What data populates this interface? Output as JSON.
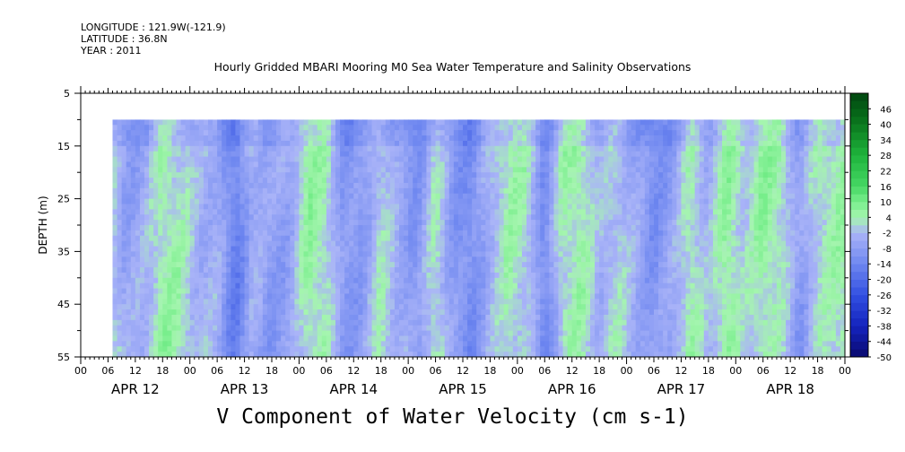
{
  "header": {
    "longitude": "LONGITUDE : 121.9W(-121.9)",
    "latitude": "LATITUDE : 36.8N",
    "year": "YEAR : 2011"
  },
  "chart_data": {
    "type": "heatmap",
    "title": "Hourly Gridded MBARI Mooring M0 Sea Water Temperature and Salinity Observations",
    "xlabel": "V Component of Water Velocity (cm s-1)",
    "ylabel": "DEPTH (m)",
    "y_ticks": [
      5,
      15,
      25,
      35,
      45,
      55
    ],
    "ylim": [
      5,
      55
    ],
    "y_inverted": true,
    "x_hour_labels": [
      "00",
      "06",
      "12",
      "18",
      "00",
      "06",
      "12",
      "18",
      "00",
      "06",
      "12",
      "18",
      "00",
      "06",
      "12",
      "18",
      "00",
      "06",
      "12",
      "18",
      "00",
      "06",
      "12",
      "18",
      "00",
      "06",
      "12",
      "18",
      "00"
    ],
    "x_day_labels": [
      "APR 12",
      "APR 13",
      "APR 14",
      "APR 15",
      "APR 16",
      "APR 17",
      "APR 18"
    ],
    "data_depth_range": [
      10,
      55
    ],
    "data_start": "APR 12 07",
    "colorbar": {
      "labels": [
        "46",
        "40",
        "34",
        "28",
        "22",
        "16",
        "10",
        "4",
        "-2",
        "-8",
        "-14",
        "-20",
        "-26",
        "-32",
        "-38",
        "-44",
        "-50"
      ],
      "min": -50,
      "max": 52
    },
    "v_profile_by_time": [
      {
        "time": "APR 12 07",
        "v": 0
      },
      {
        "time": "APR 12 10",
        "v": -7
      },
      {
        "time": "APR 12 14",
        "v": -4
      },
      {
        "time": "APR 12 18",
        "v": 5
      },
      {
        "time": "APR 12 22",
        "v": 3
      },
      {
        "time": "APR 13 02",
        "v": -3
      },
      {
        "time": "APR 13 06",
        "v": -4
      },
      {
        "time": "APR 13 10",
        "v": -16
      },
      {
        "time": "APR 13 14",
        "v": -3
      },
      {
        "time": "APR 13 18",
        "v": -8
      },
      {
        "time": "APR 13 22",
        "v": -6
      },
      {
        "time": "APR 14 02",
        "v": 6
      },
      {
        "time": "APR 14 06",
        "v": 3
      },
      {
        "time": "APR 14 10",
        "v": -10
      },
      {
        "time": "APR 14 14",
        "v": -8
      },
      {
        "time": "APR 14 18",
        "v": 2
      },
      {
        "time": "APR 14 22",
        "v": -5
      },
      {
        "time": "APR 15 02",
        "v": -10
      },
      {
        "time": "APR 15 06",
        "v": 3
      },
      {
        "time": "APR 15 10",
        "v": -9
      },
      {
        "time": "APR 15 14",
        "v": -12
      },
      {
        "time": "APR 15 18",
        "v": -3
      },
      {
        "time": "APR 15 22",
        "v": 4
      },
      {
        "time": "APR 16 02",
        "v": 2
      },
      {
        "time": "APR 16 06",
        "v": -13
      },
      {
        "time": "APR 16 10",
        "v": 3
      },
      {
        "time": "APR 16 14",
        "v": 5
      },
      {
        "time": "APR 16 18",
        "v": -3
      },
      {
        "time": "APR 16 22",
        "v": 1
      },
      {
        "time": "APR 17 02",
        "v": -5
      },
      {
        "time": "APR 17 06",
        "v": -11
      },
      {
        "time": "APR 17 10",
        "v": -6
      },
      {
        "time": "APR 17 14",
        "v": 4
      },
      {
        "time": "APR 17 18",
        "v": -3
      },
      {
        "time": "APR 17 22",
        "v": 7
      },
      {
        "time": "APR 18 02",
        "v": 0
      },
      {
        "time": "APR 18 06",
        "v": 6
      },
      {
        "time": "APR 18 10",
        "v": 3
      },
      {
        "time": "APR 18 14",
        "v": -8
      },
      {
        "time": "APR 18 18",
        "v": 2
      },
      {
        "time": "APR 18 22",
        "v": 4
      },
      {
        "time": "APR 19 00",
        "v": 5
      }
    ]
  }
}
